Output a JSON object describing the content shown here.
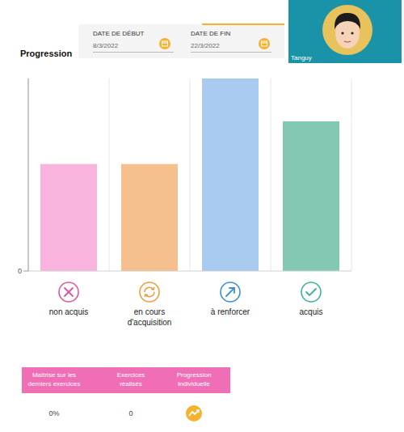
{
  "header": {
    "title": "Progression",
    "start_label": "DATE DE DÉBUT",
    "start_date": "8/3/2022",
    "end_label": "DATE DE FIN",
    "end_date": "22/3/2022"
  },
  "profile": {
    "name": "Tanguy"
  },
  "chart_data": {
    "type": "bar",
    "categories": [
      "non acquis",
      "en cours d'acquisition",
      "à renforcer",
      "acquis"
    ],
    "values": [
      5,
      5,
      9,
      7
    ],
    "colors": [
      "#f8b4dc",
      "#f5c08e",
      "#a9cbef",
      "#83c8b2"
    ],
    "ylim": [
      0,
      9
    ],
    "yticks": [
      0
    ],
    "grid": true
  },
  "table": {
    "columns": [
      "Maîtrise sur les derniers exercices",
      "Exercices réalisés",
      "Progression individuelle"
    ],
    "rows": [
      [
        "0%",
        "0"
      ]
    ]
  }
}
